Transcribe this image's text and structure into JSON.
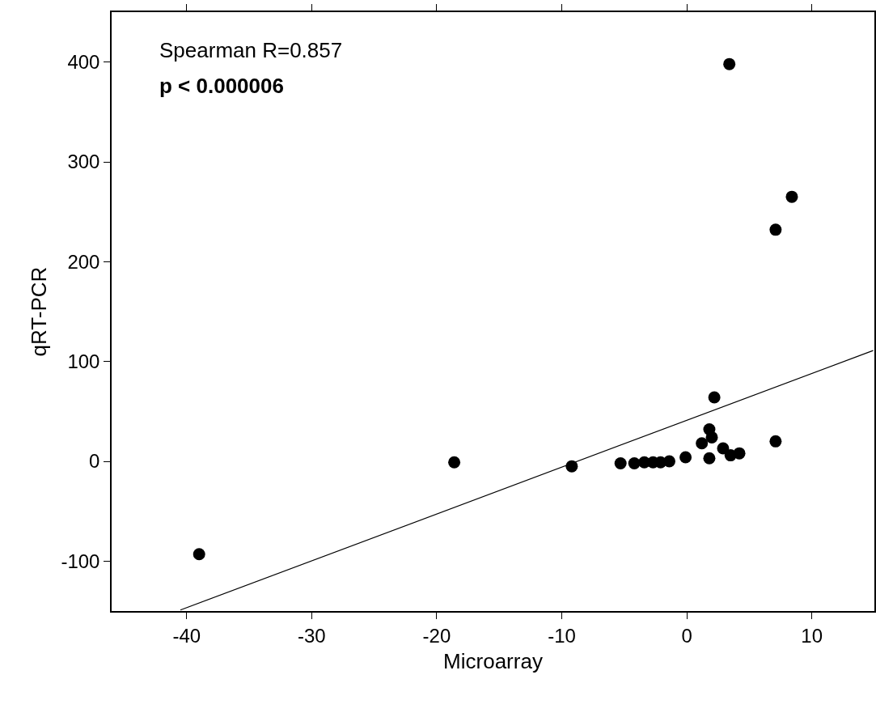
{
  "chart_data": {
    "type": "scatter",
    "xlabel": "Microarray",
    "ylabel": "qRT-PCR",
    "xlim": [
      -46,
      15
    ],
    "ylim": [
      -150,
      450
    ],
    "xticks": [
      -40,
      -30,
      -20,
      -10,
      0,
      10
    ],
    "yticks": [
      -100,
      0,
      100,
      200,
      300,
      400
    ],
    "grid": false,
    "marker": "circle",
    "annotations": [
      "Spearman R=0.857",
      "p < 0.000006"
    ],
    "series": [
      {
        "color": "#000000",
        "x": [
          -39,
          -18.6,
          -9.2,
          -5.3,
          -4.2,
          -3.4,
          -2.7,
          -2.1,
          -1.4,
          -0.1,
          1.2,
          1.8,
          2.0,
          1.8,
          2.2,
          2.9,
          3.5,
          4.2,
          7.1,
          3.4,
          7.1,
          8.4
        ],
        "values": [
          -93,
          -1,
          -5,
          -2,
          -2,
          -1,
          -1,
          -1,
          0,
          4,
          18,
          32,
          24,
          3,
          64,
          13,
          6,
          8,
          20,
          398,
          232,
          265
        ]
      },
      {
        "type": "line",
        "color": "#000000",
        "marker": "none",
        "x": [
          -40.5,
          14.9
        ],
        "values": [
          -149,
          111
        ]
      }
    ]
  }
}
